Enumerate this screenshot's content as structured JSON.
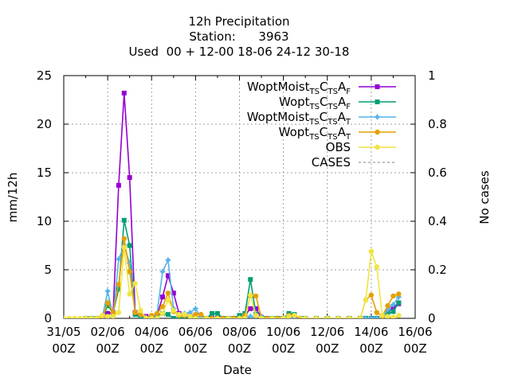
{
  "chart_data": {
    "type": "line",
    "title_lines": [
      "12h Precipitation",
      "Station:      3963",
      "Used  00 + 12-00 18-06 24-12 30-18"
    ],
    "xlabel": "Date",
    "ylabel": "mm/12h",
    "y2label": "No cases",
    "xlim": [
      0,
      16
    ],
    "ylim": [
      0,
      25
    ],
    "y2lim": [
      0,
      1
    ],
    "grid": true,
    "legend_position": "top-right",
    "x_ticks": [
      {
        "x": 0,
        "l1": "31/05",
        "l2": "00Z"
      },
      {
        "x": 2,
        "l1": "02/06",
        "l2": "00Z"
      },
      {
        "x": 4,
        "l1": "04/06",
        "l2": "00Z"
      },
      {
        "x": 6,
        "l1": "06/06",
        "l2": "00Z"
      },
      {
        "x": 8,
        "l1": "08/06",
        "l2": "00Z"
      },
      {
        "x": 10,
        "l1": "10/06",
        "l2": "00Z"
      },
      {
        "x": 12,
        "l1": "12/06",
        "l2": "00Z"
      },
      {
        "x": 14,
        "l1": "14/06",
        "l2": "00Z"
      },
      {
        "x": 16,
        "l1": "16/06",
        "l2": "00Z"
      }
    ],
    "y_ticks": [
      0,
      5,
      10,
      15,
      20,
      25
    ],
    "y2_ticks": [
      {
        "v": 0,
        "label": "0"
      },
      {
        "v": 0.2,
        "label": "0.2"
      },
      {
        "v": 0.4,
        "label": "0.4"
      },
      {
        "v": 0.6,
        "label": "0.6"
      },
      {
        "v": 0.8,
        "label": "0.8"
      },
      {
        "v": 1,
        "label": "1"
      }
    ],
    "series": [
      {
        "name_main": "WoptMoist",
        "sub1": "TS",
        "mid": "C",
        "sub2": "TS",
        "mid2": "A",
        "sub3": "F",
        "color": "#9400d3",
        "marker": "square",
        "points": [
          [
            1.0,
            0
          ],
          [
            1.25,
            0
          ],
          [
            1.5,
            0
          ],
          [
            1.75,
            0
          ],
          [
            2.0,
            0.5
          ],
          [
            2.25,
            0.6
          ],
          [
            2.5,
            13.7
          ],
          [
            2.75,
            23.2
          ],
          [
            3.0,
            14.5
          ],
          [
            3.25,
            0.6
          ],
          [
            3.5,
            0.2
          ],
          [
            3.75,
            0.2
          ],
          [
            4.0,
            0
          ],
          [
            4.25,
            0.3
          ],
          [
            4.5,
            2.2
          ],
          [
            4.75,
            4.4
          ],
          [
            5.0,
            2.6
          ],
          [
            5.25,
            0.5
          ],
          [
            5.5,
            0.3
          ],
          [
            5.75,
            0.2
          ],
          [
            6.0,
            0
          ],
          [
            6.25,
            0
          ],
          [
            6.5,
            0
          ],
          [
            6.75,
            0
          ],
          [
            7.0,
            0
          ],
          [
            7.25,
            0
          ],
          [
            7.5,
            0
          ],
          [
            7.75,
            0
          ],
          [
            8.0,
            0
          ],
          [
            8.25,
            0.3
          ],
          [
            8.5,
            1.0
          ],
          [
            8.75,
            1.0
          ],
          [
            9.0,
            0.1
          ],
          [
            9.25,
            0
          ],
          [
            9.5,
            0
          ],
          [
            9.75,
            0
          ],
          [
            10.0,
            0
          ],
          [
            10.25,
            0.2
          ],
          [
            10.5,
            0.2
          ],
          [
            10.75,
            0
          ],
          [
            11.0,
            0
          ],
          [
            11.5,
            0
          ],
          [
            12.0,
            0
          ],
          [
            12.5,
            0
          ],
          [
            13.0,
            0
          ],
          [
            13.5,
            0
          ],
          [
            13.75,
            0
          ],
          [
            14.0,
            0
          ],
          [
            14.25,
            0
          ],
          [
            14.5,
            0
          ],
          [
            14.75,
            0.6
          ],
          [
            15.0,
            1.2
          ],
          [
            15.25,
            1.5
          ]
        ]
      },
      {
        "name_main": "Wopt",
        "sub1": "TS",
        "mid": "C",
        "sub2": "TS",
        "mid2": "A",
        "sub3": "F",
        "color": "#009e73",
        "marker": "square",
        "points": [
          [
            1.0,
            0
          ],
          [
            1.25,
            0
          ],
          [
            1.5,
            0
          ],
          [
            1.75,
            0
          ],
          [
            2.0,
            1.3
          ],
          [
            2.25,
            0.6
          ],
          [
            2.5,
            3.0
          ],
          [
            2.75,
            10.1
          ],
          [
            3.0,
            7.5
          ],
          [
            3.25,
            0.4
          ],
          [
            3.5,
            0.1
          ],
          [
            3.75,
            0
          ],
          [
            4.0,
            0.2
          ],
          [
            4.25,
            0.3
          ],
          [
            4.5,
            0.5
          ],
          [
            4.75,
            0.4
          ],
          [
            5.0,
            0
          ],
          [
            5.25,
            0
          ],
          [
            5.5,
            0.1
          ],
          [
            5.75,
            0.1
          ],
          [
            6.0,
            0
          ],
          [
            6.25,
            0
          ],
          [
            6.5,
            0
          ],
          [
            6.75,
            0.5
          ],
          [
            7.0,
            0.5
          ],
          [
            7.25,
            0
          ],
          [
            7.5,
            0
          ],
          [
            7.75,
            0
          ],
          [
            8.0,
            0.3
          ],
          [
            8.25,
            0.5
          ],
          [
            8.5,
            4.0
          ],
          [
            8.75,
            0.4
          ],
          [
            9.0,
            0
          ],
          [
            9.25,
            0
          ],
          [
            9.5,
            0
          ],
          [
            9.75,
            0
          ],
          [
            10.0,
            0
          ],
          [
            10.25,
            0.5
          ],
          [
            10.5,
            0.4
          ],
          [
            10.75,
            0
          ],
          [
            11.0,
            0
          ],
          [
            11.5,
            0
          ],
          [
            12.0,
            0
          ],
          [
            12.5,
            0
          ],
          [
            13.0,
            0
          ],
          [
            13.5,
            0
          ],
          [
            13.75,
            0
          ],
          [
            14.0,
            0
          ],
          [
            14.25,
            0
          ],
          [
            14.5,
            0
          ],
          [
            14.75,
            0.5
          ],
          [
            15.0,
            0.7
          ],
          [
            15.25,
            1.6
          ]
        ]
      },
      {
        "name_main": "WoptMoist",
        "sub1": "TS",
        "mid": "C",
        "sub2": "TS",
        "mid2": "A",
        "sub3": "T",
        "color": "#56b4e9",
        "marker": "star",
        "points": [
          [
            1.0,
            0
          ],
          [
            1.25,
            0
          ],
          [
            1.5,
            0
          ],
          [
            1.75,
            0
          ],
          [
            2.0,
            2.8
          ],
          [
            2.25,
            0.2
          ],
          [
            2.5,
            6.1
          ],
          [
            2.75,
            7.5
          ],
          [
            3.0,
            5.7
          ],
          [
            3.25,
            0.6
          ],
          [
            3.5,
            0.3
          ],
          [
            3.75,
            0.1
          ],
          [
            4.0,
            0
          ],
          [
            4.25,
            0.5
          ],
          [
            4.5,
            4.8
          ],
          [
            4.75,
            6.0
          ],
          [
            5.0,
            1.0
          ],
          [
            5.25,
            0.3
          ],
          [
            5.5,
            0.5
          ],
          [
            5.75,
            0.6
          ],
          [
            6.0,
            1.0
          ],
          [
            6.25,
            0.1
          ],
          [
            6.5,
            0
          ],
          [
            6.75,
            0
          ],
          [
            7.0,
            0
          ],
          [
            7.25,
            0
          ],
          [
            7.5,
            0
          ],
          [
            7.75,
            0
          ],
          [
            8.0,
            0
          ],
          [
            8.25,
            0
          ],
          [
            8.5,
            0.2
          ],
          [
            8.75,
            0.2
          ],
          [
            9.0,
            0.2
          ],
          [
            9.25,
            0
          ],
          [
            9.5,
            0
          ],
          [
            9.75,
            0
          ],
          [
            10.0,
            0
          ],
          [
            10.25,
            0
          ],
          [
            10.5,
            0
          ],
          [
            10.75,
            0
          ],
          [
            11.0,
            0
          ],
          [
            11.5,
            0
          ],
          [
            12.0,
            0
          ],
          [
            12.5,
            0
          ],
          [
            13.0,
            0
          ],
          [
            13.5,
            0
          ],
          [
            13.75,
            0
          ],
          [
            14.0,
            0
          ],
          [
            14.25,
            0
          ],
          [
            14.5,
            0
          ],
          [
            14.75,
            0.9
          ],
          [
            15.0,
            1.4
          ],
          [
            15.25,
            2.2
          ]
        ]
      },
      {
        "name_main": "Wopt",
        "sub1": "TS",
        "mid": "C",
        "sub2": "TS",
        "mid2": "A",
        "sub3": "T",
        "color": "#e69f00",
        "marker": "circle",
        "points": [
          [
            1.0,
            0
          ],
          [
            1.25,
            0
          ],
          [
            1.5,
            0
          ],
          [
            1.75,
            0
          ],
          [
            2.0,
            1.6
          ],
          [
            2.25,
            0.6
          ],
          [
            2.5,
            3.5
          ],
          [
            2.75,
            8.2
          ],
          [
            3.0,
            4.8
          ],
          [
            3.25,
            0.6
          ],
          [
            3.5,
            0.4
          ],
          [
            3.75,
            0
          ],
          [
            4.0,
            0.3
          ],
          [
            4.25,
            0.5
          ],
          [
            4.5,
            1.2
          ],
          [
            4.75,
            2.6
          ],
          [
            5.0,
            0.7
          ],
          [
            5.25,
            0.3
          ],
          [
            5.5,
            0.3
          ],
          [
            5.75,
            0.2
          ],
          [
            6.0,
            0.4
          ],
          [
            6.25,
            0.4
          ],
          [
            6.5,
            0
          ],
          [
            6.75,
            0
          ],
          [
            7.0,
            0
          ],
          [
            7.25,
            0
          ],
          [
            7.5,
            0
          ],
          [
            7.75,
            0
          ],
          [
            8.0,
            0
          ],
          [
            8.25,
            0.3
          ],
          [
            8.5,
            2.3
          ],
          [
            8.75,
            2.3
          ],
          [
            9.0,
            0
          ],
          [
            9.25,
            0
          ],
          [
            9.5,
            0
          ],
          [
            9.75,
            0
          ],
          [
            10.0,
            0
          ],
          [
            10.25,
            0.3
          ],
          [
            10.5,
            0.3
          ],
          [
            10.75,
            0
          ],
          [
            11.0,
            0
          ],
          [
            11.5,
            0
          ],
          [
            12.0,
            0
          ],
          [
            12.5,
            0
          ],
          [
            13.0,
            0
          ],
          [
            13.5,
            0
          ],
          [
            13.75,
            1.9
          ],
          [
            14.0,
            2.4
          ],
          [
            14.25,
            0.6
          ],
          [
            14.5,
            0.2
          ],
          [
            14.75,
            1.3
          ],
          [
            15.0,
            2.3
          ],
          [
            15.25,
            2.5
          ]
        ]
      },
      {
        "name_main": "OBS",
        "color": "#f0e442",
        "marker": "circle",
        "points": [
          [
            0,
            0
          ],
          [
            0.25,
            0
          ],
          [
            0.5,
            0
          ],
          [
            0.75,
            0
          ],
          [
            1.0,
            0
          ],
          [
            1.25,
            0
          ],
          [
            1.5,
            0
          ],
          [
            1.75,
            0.3
          ],
          [
            2.0,
            0.2
          ],
          [
            2.25,
            0.2
          ],
          [
            2.5,
            0.6
          ],
          [
            2.75,
            7.3
          ],
          [
            3.0,
            2.5
          ],
          [
            3.25,
            3.6
          ],
          [
            3.5,
            0.8
          ],
          [
            3.75,
            0
          ],
          [
            4.0,
            0
          ],
          [
            4.25,
            0
          ],
          [
            4.5,
            0.5
          ],
          [
            4.75,
            1.9
          ],
          [
            5.0,
            0.8
          ],
          [
            5.25,
            0.4
          ],
          [
            5.5,
            0.4
          ],
          [
            5.75,
            0.2
          ],
          [
            6.0,
            0
          ],
          [
            6.5,
            0
          ],
          [
            7.0,
            0
          ],
          [
            7.5,
            0
          ],
          [
            8.0,
            0
          ],
          [
            8.25,
            0
          ],
          [
            8.5,
            2.4
          ],
          [
            8.75,
            0.3
          ],
          [
            9.0,
            0
          ],
          [
            9.5,
            0
          ],
          [
            10.0,
            0
          ],
          [
            10.25,
            0.2
          ],
          [
            10.5,
            0.3
          ],
          [
            11.0,
            0
          ],
          [
            11.5,
            0
          ],
          [
            12.0,
            0
          ],
          [
            12.5,
            0
          ],
          [
            13.0,
            0
          ],
          [
            13.5,
            0
          ],
          [
            13.75,
            1.9
          ],
          [
            14.0,
            6.9
          ],
          [
            14.25,
            5.3
          ],
          [
            14.5,
            0.3
          ],
          [
            14.75,
            0.2
          ],
          [
            15.0,
            0.1
          ],
          [
            15.25,
            0.3
          ]
        ]
      },
      {
        "name_main": "CASES",
        "color": "#808080",
        "marker": "none",
        "dashed": true,
        "points": []
      }
    ]
  }
}
